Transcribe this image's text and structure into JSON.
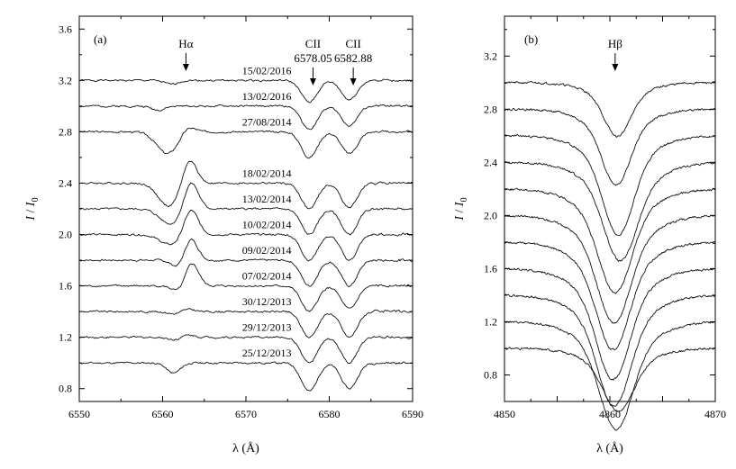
{
  "chart_data": [
    {
      "type": "line",
      "panel_label": "(a)",
      "xlabel": "λ (Å)",
      "ylabel_main": "I",
      "ylabel_sub": "0",
      "xlim": [
        6550,
        6590
      ],
      "ylim": [
        0.7,
        3.7
      ],
      "xticks": [
        6550,
        6560,
        6570,
        6580,
        6590
      ],
      "yticks": [
        0.8,
        1.2,
        1.6,
        2.0,
        2.4,
        2.8,
        3.2,
        3.6
      ],
      "xtick_labels": [
        "6550",
        "6560",
        "6570",
        "6580",
        "6590"
      ],
      "ytick_labels": [
        "0.8",
        "1.2",
        "1.6",
        "2.0",
        "2.4",
        "2.8",
        "3.2",
        "3.6"
      ],
      "grid": false,
      "annotations": [
        {
          "label": "Hα",
          "sublabel": "",
          "x": 6562.8
        },
        {
          "label": "CII",
          "sublabel": "6578.05",
          "x": 6578.05
        },
        {
          "label": "CII",
          "sublabel": "6582.88",
          "x": 6582.88
        }
      ],
      "series": [
        {
          "name": "15/02/2016",
          "baseline": 3.2,
          "ha_em": 0.0,
          "ha_abs": -0.03,
          "ha_pos": 6562.5,
          "c1": 0.17,
          "c2": 0.15,
          "seed": 1,
          "ha_wide": false
        },
        {
          "name": "13/02/2016",
          "baseline": 3.0,
          "ha_em": 0.0,
          "ha_abs": -0.03,
          "ha_pos": 6561.0,
          "c1": 0.18,
          "c2": 0.15,
          "seed": 2,
          "ha_wide": false
        },
        {
          "name": "27/08/2014",
          "baseline": 2.8,
          "ha_em": 0.05,
          "ha_abs": -0.17,
          "ha_pos": 6563.0,
          "c1": 0.2,
          "c2": 0.17,
          "seed": 3,
          "ha_wide": true
        },
        {
          "name": "18/02/2014",
          "baseline": 2.4,
          "ha_em": 0.2,
          "ha_abs": -0.18,
          "ha_pos": 6563.2,
          "c1": 0.2,
          "c2": 0.19,
          "seed": 4,
          "ha_wide": true
        },
        {
          "name": "13/02/2014",
          "baseline": 2.2,
          "ha_em": 0.22,
          "ha_abs": -0.12,
          "ha_pos": 6563.4,
          "c1": 0.2,
          "c2": 0.2,
          "seed": 5,
          "ha_wide": true
        },
        {
          "name": "10/02/2014",
          "baseline": 2.0,
          "ha_em": 0.2,
          "ha_abs": -0.08,
          "ha_pos": 6563.4,
          "c1": 0.2,
          "c2": 0.2,
          "seed": 6,
          "ha_wide": true
        },
        {
          "name": "09/02/2014",
          "baseline": 1.8,
          "ha_em": 0.17,
          "ha_abs": -0.06,
          "ha_pos": 6563.4,
          "c1": 0.2,
          "c2": 0.2,
          "seed": 7,
          "ha_wide": false
        },
        {
          "name": "07/02/2014",
          "baseline": 1.6,
          "ha_em": 0.18,
          "ha_abs": -0.05,
          "ha_pos": 6563.5,
          "c1": 0.2,
          "c2": 0.18,
          "seed": 8,
          "ha_wide": false
        },
        {
          "name": "30/12/2013",
          "baseline": 1.4,
          "ha_em": 0.02,
          "ha_abs": -0.02,
          "ha_pos": 6563.0,
          "c1": 0.2,
          "c2": 0.2,
          "seed": 9,
          "ha_wide": false
        },
        {
          "name": "29/12/2013",
          "baseline": 1.2,
          "ha_em": 0.02,
          "ha_abs": -0.02,
          "ha_pos": 6563.0,
          "c1": 0.2,
          "c2": 0.2,
          "seed": 10,
          "ha_wide": false
        },
        {
          "name": "25/12/2013",
          "baseline": 1.0,
          "ha_em": 0.0,
          "ha_abs": -0.08,
          "ha_pos": 6562.8,
          "c1": 0.22,
          "c2": 0.2,
          "seed": 11,
          "ha_wide": false
        }
      ]
    },
    {
      "type": "line",
      "panel_label": "(b)",
      "xlabel": "λ (Å)",
      "ylabel_main": "I",
      "ylabel_sub": "0",
      "xlim": [
        4850,
        4870
      ],
      "ylim": [
        0.6,
        3.5
      ],
      "xticks": [
        4850,
        4855,
        4860,
        4865,
        4870
      ],
      "yticks": [
        0.8,
        1.2,
        1.6,
        2.0,
        2.4,
        2.8,
        3.2
      ],
      "xtick_labels": [
        "4850",
        "",
        "4860",
        "",
        "4870"
      ],
      "ytick_labels": [
        "0.8",
        "1.2",
        "1.6",
        "2.0",
        "2.4",
        "2.8",
        "3.2"
      ],
      "grid": false,
      "annotations": [
        {
          "label": "Hβ",
          "sublabel": "",
          "x": 4860.5
        }
      ],
      "series": [
        {
          "baseline": 3.0,
          "depth": 0.3,
          "center": 4860.7,
          "width": 1.2,
          "seed": 21
        },
        {
          "baseline": 2.8,
          "depth": 0.42,
          "center": 4860.6,
          "width": 1.3,
          "seed": 22
        },
        {
          "baseline": 2.6,
          "depth": 0.55,
          "center": 4860.8,
          "width": 1.4,
          "seed": 23
        },
        {
          "baseline": 2.4,
          "depth": 0.55,
          "center": 4861.0,
          "width": 1.5,
          "seed": 24
        },
        {
          "baseline": 2.2,
          "depth": 0.58,
          "center": 4860.5,
          "width": 1.5,
          "seed": 25
        },
        {
          "baseline": 2.0,
          "depth": 0.6,
          "center": 4860.4,
          "width": 1.5,
          "seed": 26
        },
        {
          "baseline": 1.8,
          "depth": 0.6,
          "center": 4860.3,
          "width": 1.5,
          "seed": 27
        },
        {
          "baseline": 1.6,
          "depth": 0.62,
          "center": 4860.3,
          "width": 1.5,
          "seed": 28
        },
        {
          "baseline": 1.4,
          "depth": 0.62,
          "center": 4860.4,
          "width": 1.5,
          "seed": 29
        },
        {
          "baseline": 1.2,
          "depth": 0.6,
          "center": 4860.6,
          "width": 1.5,
          "seed": 30
        },
        {
          "baseline": 1.0,
          "depth": 0.35,
          "center": 4860.8,
          "width": 1.4,
          "seed": 31
        }
      ]
    }
  ]
}
